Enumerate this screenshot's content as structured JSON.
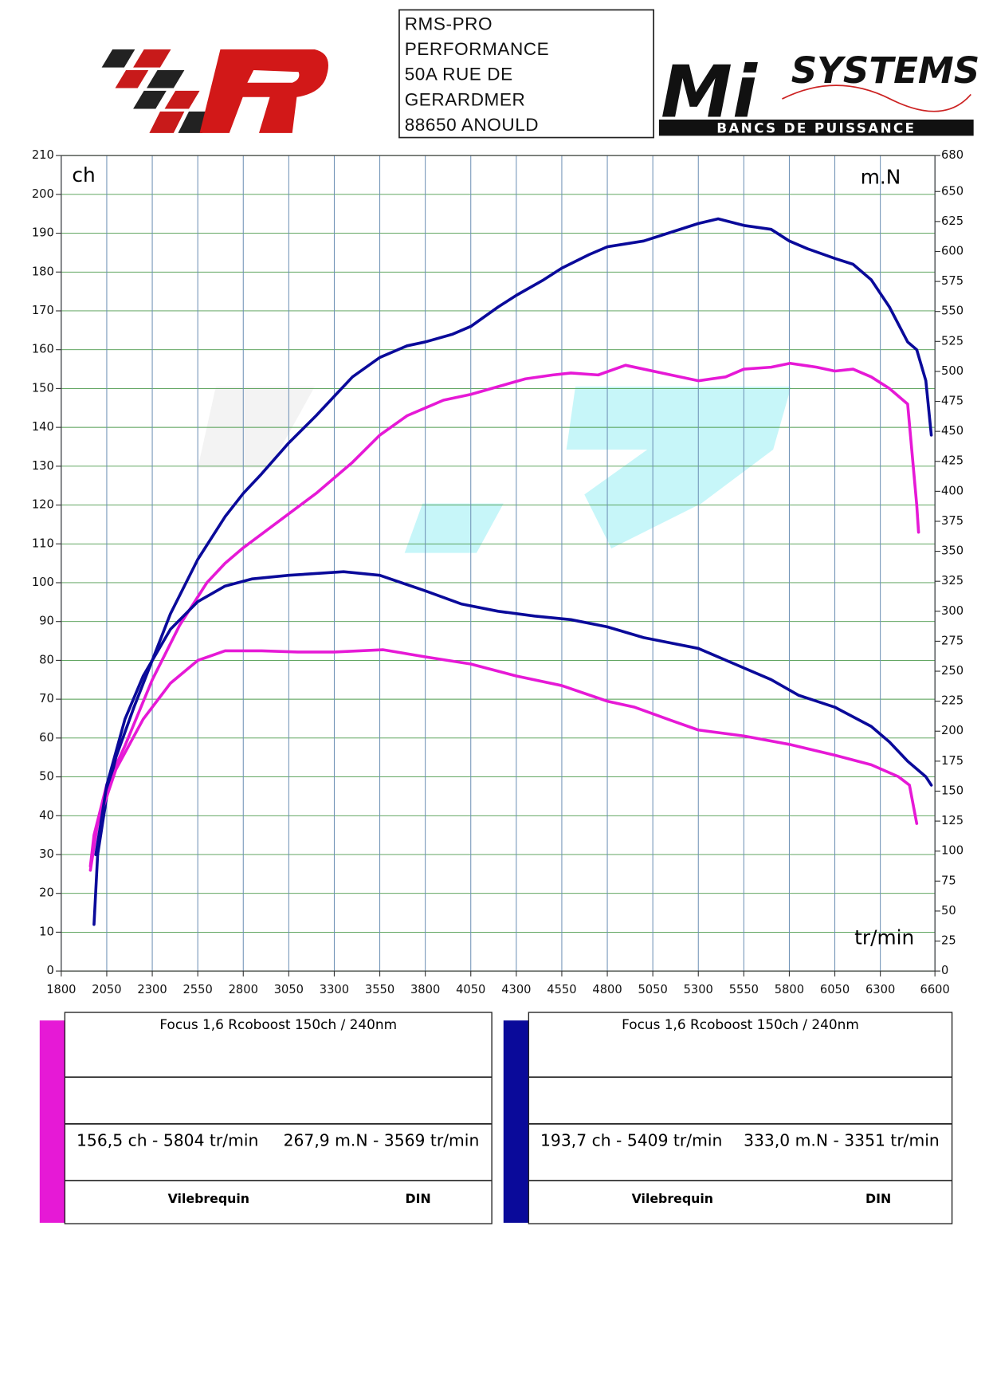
{
  "header": {
    "address": [
      "RMS-PRO",
      "PERFORMANCE",
      "50A RUE DE",
      "GERARDMER",
      "88650 ANOULD"
    ],
    "logo_mark": "Mi",
    "logo_brand": "SYSTEMS",
    "logo_tagline": "BANCS DE PUISSANCE"
  },
  "chart_data": {
    "type": "line",
    "x_label": "tr/min",
    "y_label": "ch",
    "y2_label": "m.N",
    "xlim": [
      1800,
      6600
    ],
    "ylim": [
      0,
      210
    ],
    "y2lim": [
      0,
      680
    ],
    "xticks": [
      1800,
      2050,
      2300,
      2550,
      2800,
      3050,
      3300,
      3550,
      3800,
      4050,
      4300,
      4550,
      4800,
      5050,
      5300,
      5550,
      5800,
      6050,
      6300,
      6600
    ],
    "yticks": [
      0,
      10,
      20,
      30,
      40,
      50,
      60,
      70,
      80,
      90,
      100,
      110,
      120,
      130,
      140,
      150,
      160,
      170,
      180,
      190,
      200,
      210
    ],
    "y2ticks": [
      0,
      25,
      50,
      75,
      100,
      125,
      150,
      175,
      200,
      225,
      250,
      275,
      300,
      325,
      350,
      375,
      400,
      425,
      450,
      475,
      500,
      525,
      550,
      575,
      600,
      625,
      650,
      680
    ],
    "grid": true,
    "series": [
      {
        "color": "#e619d6",
        "x": [
          1960,
          1980,
          2050,
          2150,
          2300,
          2450,
          2600,
          2700,
          2800,
          3000,
          3200,
          3400,
          3550,
          3700,
          3900,
          4050,
          4200,
          4350,
          4500,
          4600,
          4750,
          4900,
          5000,
          5150,
          5300,
          5450,
          5550,
          5700,
          5804,
          5950,
          6050,
          6150,
          6250,
          6350,
          6450,
          6500,
          6510
        ],
        "values": [
          27,
          35,
          48,
          58,
          75,
          89,
          100,
          105,
          109,
          116,
          123,
          131,
          138,
          143,
          147,
          148.5,
          150.5,
          152.5,
          153.5,
          154,
          153.5,
          156,
          155,
          153.5,
          152,
          153,
          155,
          155.5,
          156.5,
          155.5,
          154.5,
          155,
          153,
          150,
          146,
          120,
          113
        ]
      },
      {
        "color": "#0a0a9a",
        "x": [
          1980,
          2000,
          2050,
          2100,
          2200,
          2300,
          2400,
          2550,
          2700,
          2800,
          2900,
          3050,
          3200,
          3300,
          3400,
          3550,
          3700,
          3800,
          3950,
          4050,
          4200,
          4300,
          4450,
          4550,
          4700,
          4800,
          5000,
          5100,
          5300,
          5409,
          5550,
          5700,
          5800,
          5900,
          6050,
          6150,
          6250,
          6350,
          6450,
          6500,
          6550,
          6580
        ],
        "values": [
          12,
          30,
          45,
          55,
          68,
          80,
          92,
          106,
          117,
          123,
          128,
          136,
          143,
          148,
          153,
          158,
          161,
          162,
          164,
          166,
          171,
          174,
          178,
          181,
          184.5,
          186.5,
          188,
          189.5,
          192.5,
          193.7,
          192,
          191,
          188,
          186,
          183.5,
          182,
          178,
          171,
          162,
          160,
          152,
          138
        ]
      },
      {
        "color": "#e619d6",
        "axis": "y2",
        "x": [
          1960,
          2000,
          2100,
          2250,
          2400,
          2550,
          2700,
          2900,
          3100,
          3300,
          3569,
          3800,
          4050,
          4300,
          4550,
          4800,
          4950,
          5150,
          5300,
          5550,
          5800,
          6050,
          6250,
          6400,
          6460,
          6500
        ],
        "values": [
          84,
          123,
          168,
          210,
          240,
          259,
          267,
          267,
          266,
          266,
          267.9,
          262,
          256,
          246,
          238,
          225,
          220,
          209,
          201,
          196,
          189,
          180,
          172,
          162,
          155,
          123
        ]
      },
      {
        "color": "#0a0a9a",
        "axis": "y2",
        "x": [
          1990,
          2050,
          2150,
          2250,
          2400,
          2550,
          2700,
          2850,
          3050,
          3351,
          3550,
          3800,
          4000,
          4200,
          4400,
          4600,
          4800,
          5000,
          5300,
          5500,
          5700,
          5850,
          6050,
          6250,
          6350,
          6450,
          6550,
          6580
        ],
        "values": [
          97,
          155,
          210,
          246,
          285,
          308,
          321,
          327,
          330,
          333,
          330,
          317,
          306,
          300,
          296,
          293,
          287,
          278,
          269,
          256,
          243,
          230,
          220,
          204,
          191,
          175,
          162,
          155
        ]
      }
    ]
  },
  "panels": [
    {
      "color": "#e619d6",
      "title": "Focus 1,6 Rcoboost 150ch / 240nm",
      "power_peak": "156,5 ch - 5804 tr/min",
      "torque_peak": "267,9 m.N - 3569 tr/min",
      "mode": "Vilebrequin",
      "standard": "DIN"
    },
    {
      "color": "#0a0a9a",
      "title": "Focus 1,6 Rcoboost 150ch / 240nm",
      "power_peak": "193,7 ch - 5409 tr/min",
      "torque_peak": "333,0 m.N - 3351 tr/min",
      "mode": "Vilebrequin",
      "standard": "DIN"
    }
  ]
}
